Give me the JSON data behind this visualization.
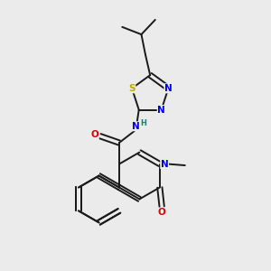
{
  "bg_color": "#ebebeb",
  "bond_color": "#1a1a1a",
  "atom_colors": {
    "N": "#0000dd",
    "O": "#dd0000",
    "S": "#bbaa00",
    "H": "#008888"
  },
  "lw": 1.4,
  "fs": 7.5
}
